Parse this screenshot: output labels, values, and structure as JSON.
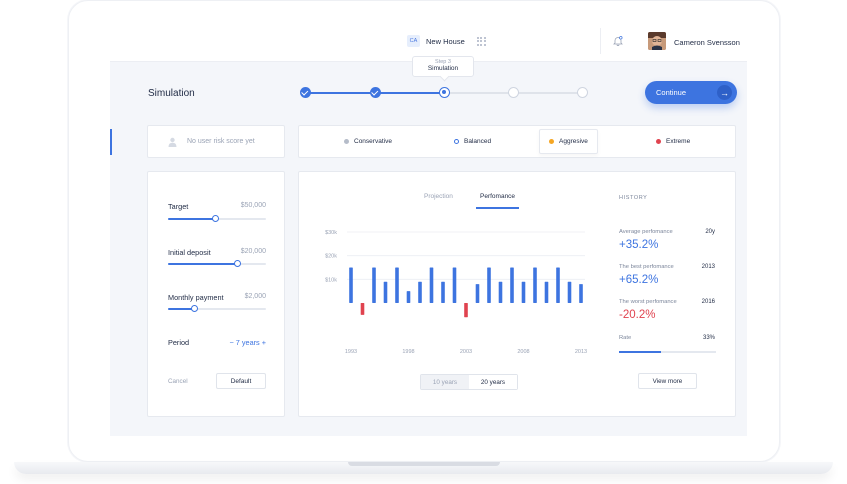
{
  "header": {
    "project_badge": "CA",
    "project_name": "New House",
    "user_name": "Cameron Svensson"
  },
  "page": {
    "title": "Simulation"
  },
  "stepper": {
    "steps": [
      {
        "state": "done"
      },
      {
        "state": "done"
      },
      {
        "state": "current"
      },
      {
        "state": "todo"
      },
      {
        "state": "todo"
      }
    ],
    "tooltip_step": "Step 3",
    "tooltip_label": "Simulation"
  },
  "continue_button": {
    "label": "Continue"
  },
  "risk": {
    "user_risk": "No user risk score yet",
    "options": [
      {
        "label": "Conservative",
        "color": "#b5bcc9"
      },
      {
        "label": "Balanced",
        "color": "#3d74e0"
      },
      {
        "label": "Aggresive",
        "color": "#f5a623",
        "selected": true
      },
      {
        "label": "Extreme",
        "color": "#e0434f"
      }
    ]
  },
  "inputs": {
    "target": {
      "label": "Target",
      "value": "$50,000",
      "level": 0.48
    },
    "initial_deposit": {
      "label": "Initial deposit",
      "value": "$20,000",
      "level": 0.71
    },
    "monthly_payment": {
      "label": "Monthly payment",
      "value": "$2,000",
      "level": 0.27
    },
    "period": {
      "label": "Period",
      "value": "− 7 years +"
    },
    "cancel_label": "Cancel",
    "default_label": "Default"
  },
  "chart": {
    "tabs": [
      "Projection",
      "Perfomance"
    ],
    "active_tab": 1,
    "range_options": [
      "10 years",
      "20 years"
    ]
  },
  "chart_data": {
    "type": "bar",
    "yticks": [
      "$30k",
      "$20k",
      "$10k"
    ],
    "ytick_values": [
      30,
      20,
      10
    ],
    "ylim": [
      -6,
      30
    ],
    "x_labels": [
      "1993",
      "1998",
      "2003",
      "2008",
      "2013"
    ],
    "categories": [
      "1993",
      "1994",
      "1995",
      "1996",
      "1997",
      "1998",
      "1999",
      "2000",
      "2001",
      "2002",
      "2003",
      "2004",
      "2005",
      "2006",
      "2007",
      "2008",
      "2009",
      "2010",
      "2011",
      "2012",
      "2013"
    ],
    "values": [
      15,
      -5,
      15,
      9,
      15,
      5,
      9,
      15,
      9,
      15,
      -6,
      8,
      15,
      9,
      15,
      9,
      15,
      9,
      15,
      9,
      8
    ],
    "colors": {
      "positive": "#3d74e0",
      "negative": "#e0434f"
    },
    "ylabel": "",
    "xlabel": ""
  },
  "history": {
    "title": "HISTORY",
    "average": {
      "label": "Average perfomance",
      "aside": "20y",
      "value": "+35.2%"
    },
    "best": {
      "label": "The best perfomance",
      "aside": "2013",
      "value": "+65.2%"
    },
    "worst": {
      "label": "The worst perfomance",
      "aside": "2016",
      "value": "-20.2%"
    },
    "rate": {
      "label": "Rate",
      "aside": "33%",
      "level": 0.43
    },
    "view_more": "View more"
  }
}
